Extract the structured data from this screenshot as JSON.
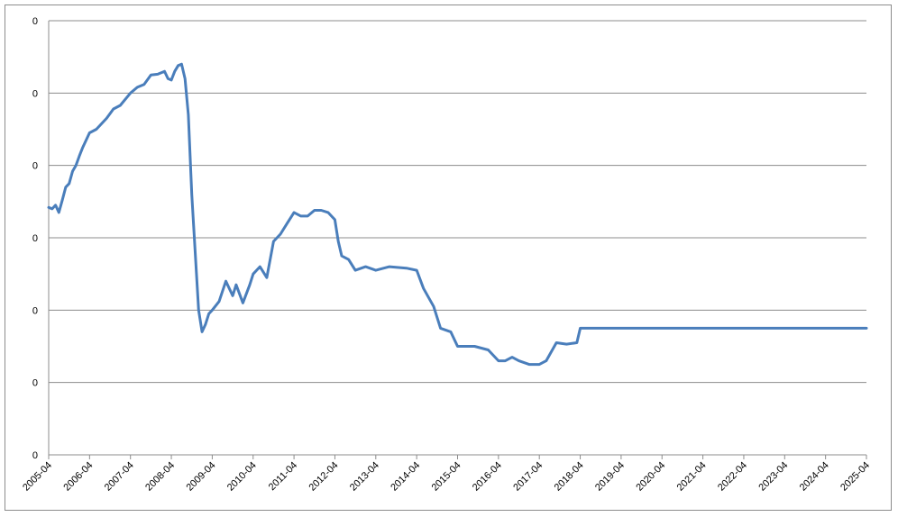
{
  "chart_data": {
    "type": "line",
    "title": "",
    "xlabel": "",
    "ylabel": "",
    "y_tick_labels": [
      "0",
      "0",
      "0",
      "0",
      "0",
      "0",
      "0"
    ],
    "x_tick_labels": [
      "2005-04",
      "2006-04",
      "2007-04",
      "2008-04",
      "2009-04",
      "2010-04",
      "2011-04",
      "2012-04",
      "2013-04",
      "2014-04",
      "2015-04",
      "2016-04",
      "2017-04",
      "2018-04",
      "2019-04",
      "2020-04",
      "2021-04",
      "2022-04",
      "2023-04",
      "2024-04",
      "2025-04"
    ],
    "xlim": [
      "2005-04",
      "2025-04"
    ],
    "ylim": [
      0,
      6
    ],
    "grid": "horizontal",
    "legend": "none",
    "colors": {
      "line": "#4a7ebb",
      "grid": "#8c8c8c",
      "axis": "#8c8c8c"
    },
    "series": [
      {
        "x": [
          "2005-04",
          "2005-05",
          "2005-06",
          "2005-07",
          "2005-08",
          "2005-09",
          "2005-10",
          "2005-11",
          "2005-12",
          "2006-01",
          "2006-02",
          "2006-04",
          "2006-06",
          "2006-09",
          "2006-11",
          "2007-01",
          "2007-04",
          "2007-06",
          "2007-08",
          "2007-10",
          "2007-12",
          "2008-02",
          "2008-03",
          "2008-04",
          "2008-05",
          "2008-06",
          "2008-07",
          "2008-08",
          "2008-09",
          "2008-10",
          "2008-11",
          "2008-12",
          "2009-01",
          "2009-02",
          "2009-03",
          "2009-04",
          "2009-06",
          "2009-08",
          "2009-10",
          "2009-11",
          "2010-01",
          "2010-03",
          "2010-04",
          "2010-06",
          "2010-08",
          "2010-10",
          "2010-12",
          "2011-02",
          "2011-04",
          "2011-06",
          "2011-08",
          "2011-10",
          "2011-12",
          "2012-02",
          "2012-04",
          "2012-05",
          "2012-06",
          "2012-08",
          "2012-10",
          "2013-01",
          "2013-04",
          "2013-08",
          "2014-01",
          "2014-04",
          "2014-06",
          "2014-09",
          "2014-11",
          "2015-02",
          "2015-04",
          "2015-06",
          "2015-09",
          "2016-01",
          "2016-04",
          "2016-06",
          "2016-08",
          "2016-10",
          "2017-01",
          "2017-04",
          "2017-06",
          "2017-09",
          "2017-12",
          "2018-03",
          "2018-04",
          "2018-06",
          "2018-09",
          "2018-12",
          "2019-02",
          "2019-04",
          "2019-06",
          "2019-08",
          "2019-10",
          "2020-01",
          "2020-04",
          "2020-05",
          "2020-07",
          "2020-09",
          "2020-12",
          "2021-04",
          "2021-07",
          "2021-10",
          "2022-01",
          "2022-03",
          "2022-05",
          "2022-08",
          "2022-10",
          "2023-01",
          "2023-04",
          "2023-06",
          "2023-08",
          "2023-11",
          "2024-01",
          "2024-04",
          "2024-07",
          "2024-09",
          "2024-11",
          "2025-02",
          "2025-04"
        ],
        "y": [
          3.42,
          3.4,
          3.45,
          3.35,
          3.52,
          3.7,
          3.75,
          3.92,
          4.0,
          4.13,
          4.25,
          4.45,
          4.5,
          4.65,
          4.78,
          4.83,
          5.0,
          5.08,
          5.12,
          5.25,
          5.26,
          5.3,
          5.2,
          5.18,
          5.3,
          5.38,
          5.4,
          5.2,
          4.7,
          3.6,
          2.8,
          2.0,
          1.7,
          1.8,
          1.95,
          2.0,
          2.12,
          2.4,
          2.2,
          2.35,
          2.1,
          2.35,
          2.5,
          2.6,
          2.45,
          2.95,
          3.05,
          3.2,
          3.35,
          3.3,
          3.3,
          3.38,
          3.38,
          3.35,
          3.25,
          2.95,
          2.75,
          2.7,
          2.55,
          2.6,
          2.55,
          2.6,
          2.58,
          2.55,
          2.3,
          2.05,
          1.75,
          1.7,
          1.5,
          1.5,
          1.5,
          1.45,
          1.3,
          1.3,
          1.35,
          1.3,
          1.25,
          1.25,
          1.3,
          1.55,
          1.53,
          1.55,
          1.75,
          1.75,
          1.75,
          1.75,
          1.75,
          1.75,
          1.75,
          1.75,
          1.75,
          1.75,
          1.75,
          1.75,
          1.75,
          1.75,
          1.75,
          1.75,
          1.75,
          1.75,
          1.75,
          1.75,
          1.75,
          1.75,
          1.75,
          1.75,
          1.75,
          1.75,
          1.75,
          1.75,
          1.75,
          1.75,
          1.75,
          1.75,
          1.75,
          1.75,
          1.75
        ]
      }
    ]
  }
}
